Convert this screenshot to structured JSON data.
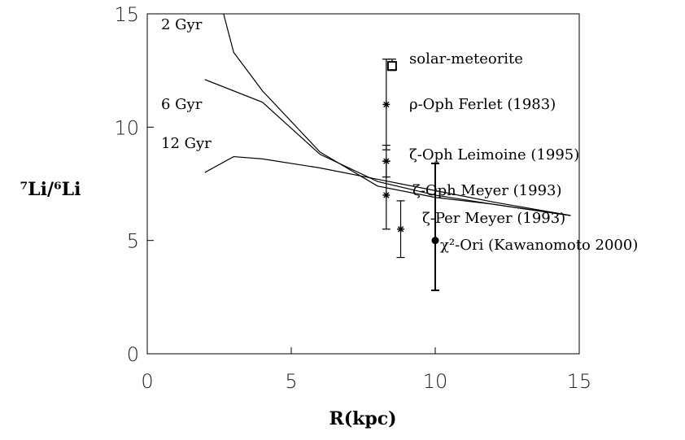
{
  "chart_data": {
    "type": "line",
    "xlabel": "R(kpc)",
    "ylabel": "⁷Li/⁶Li",
    "xlim": [
      0,
      15
    ],
    "ylim": [
      0,
      15
    ],
    "xticks": [
      0,
      5,
      10,
      15
    ],
    "yticks": [
      0,
      5,
      10,
      15
    ],
    "series": [
      {
        "name": "2 Gyr",
        "color": "#000000",
        "x": [
          2.65,
          3,
          4,
          6,
          8,
          10,
          12,
          14.7
        ],
        "values": [
          15,
          13.3,
          11.6,
          8.9,
          7.4,
          6.9,
          6.6,
          6.1
        ]
      },
      {
        "name": "6 Gyr",
        "color": "#000000",
        "x": [
          2,
          4,
          6,
          8,
          10,
          12,
          14.7
        ],
        "values": [
          12.1,
          11.1,
          8.8,
          7.6,
          7.0,
          6.6,
          6.1
        ]
      },
      {
        "name": "12 Gyr",
        "color": "#000000",
        "x": [
          2,
          3,
          4,
          6,
          8,
          10,
          12,
          14.7
        ],
        "values": [
          8.0,
          8.7,
          8.6,
          8.2,
          7.7,
          7.2,
          6.7,
          6.1
        ]
      }
    ],
    "points": {
      "labels": [
        "solar-meteorite",
        "ρ-Oph Ferlet (1983)",
        "ζ-Oph Leimoine (1995)",
        "ζ-Oph Meyer (1993)",
        "ζ-Per Meyer (1993)",
        "χ²-Ori (Kawanomoto 2000)"
      ],
      "markers": [
        "square",
        "star",
        "star",
        "star",
        "star",
        "dot"
      ],
      "x": [
        8.5,
        8.3,
        8.3,
        8.3,
        8.8,
        10.0
      ],
      "values": [
        12.7,
        11.0,
        8.5,
        7.0,
        5.5,
        5.0
      ],
      "err_low": [
        0.2,
        2.0,
        0.7,
        1.5,
        1.25,
        2.2
      ],
      "err_high": [
        0.3,
        2.0,
        0.7,
        1.5,
        1.25,
        3.4
      ]
    }
  }
}
